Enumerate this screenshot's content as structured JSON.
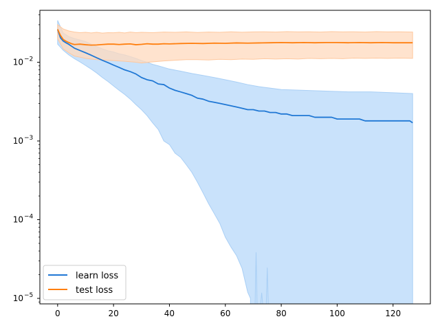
{
  "chart_data": {
    "type": "line",
    "title": "",
    "xlabel": "",
    "ylabel": "",
    "xlim": [
      -6.35,
      133.35
    ],
    "ylim_log10": [
      -5.07,
      -1.34
    ],
    "yscale": "log",
    "grid": false,
    "legend_position": "lower-left",
    "x_ticks": [
      {
        "value": 0,
        "label": "0"
      },
      {
        "value": 20,
        "label": "20"
      },
      {
        "value": 40,
        "label": "40"
      },
      {
        "value": 60,
        "label": "60"
      },
      {
        "value": 80,
        "label": "80"
      },
      {
        "value": 100,
        "label": "100"
      },
      {
        "value": 120,
        "label": "120"
      }
    ],
    "y_ticks": [
      {
        "value": -2,
        "base": "10",
        "exp": "−2"
      },
      {
        "value": -3,
        "base": "10",
        "exp": "−3"
      },
      {
        "value": -4,
        "base": "10",
        "exp": "−4"
      },
      {
        "value": -5,
        "base": "10",
        "exp": "−5"
      }
    ],
    "series": [
      {
        "name": "learn loss",
        "color": "#1f77d4",
        "band_color": "#c9e2fb",
        "band_stroke": "#a9cff5",
        "mean": [
          [
            0,
            0.0262
          ],
          [
            1,
            0.0205
          ],
          [
            2,
            0.0186
          ],
          [
            3,
            0.0177
          ],
          [
            4,
            0.0169
          ],
          [
            5,
            0.016
          ],
          [
            6,
            0.0151
          ],
          [
            8,
            0.0141
          ],
          [
            10,
            0.0132
          ],
          [
            12,
            0.0123
          ],
          [
            14,
            0.0114
          ],
          [
            16,
            0.0106
          ],
          [
            18,
            0.0099
          ],
          [
            20,
            0.0092
          ],
          [
            22,
            0.0086
          ],
          [
            24,
            0.008
          ],
          [
            26,
            0.0076
          ],
          [
            28,
            0.0071
          ],
          [
            30,
            0.0064
          ],
          [
            32,
            0.006
          ],
          [
            34,
            0.0058
          ],
          [
            36,
            0.0053
          ],
          [
            38,
            0.0052
          ],
          [
            40,
            0.0047
          ],
          [
            42,
            0.0044
          ],
          [
            44,
            0.0042
          ],
          [
            46,
            0.004
          ],
          [
            48,
            0.0038
          ],
          [
            50,
            0.0035
          ],
          [
            52,
            0.0034
          ],
          [
            54,
            0.0032
          ],
          [
            56,
            0.0031
          ],
          [
            58,
            0.003
          ],
          [
            60,
            0.0029
          ],
          [
            62,
            0.0028
          ],
          [
            64,
            0.0027
          ],
          [
            66,
            0.0026
          ],
          [
            68,
            0.0025
          ],
          [
            70,
            0.0025
          ],
          [
            72,
            0.0024
          ],
          [
            74,
            0.0024
          ],
          [
            76,
            0.0023
          ],
          [
            78,
            0.0023
          ],
          [
            80,
            0.0022
          ],
          [
            82,
            0.0022
          ],
          [
            84,
            0.0021
          ],
          [
            86,
            0.0021
          ],
          [
            88,
            0.0021
          ],
          [
            90,
            0.0021
          ],
          [
            92,
            0.002
          ],
          [
            94,
            0.002
          ],
          [
            96,
            0.002
          ],
          [
            98,
            0.002
          ],
          [
            100,
            0.0019
          ],
          [
            102,
            0.0019
          ],
          [
            104,
            0.0019
          ],
          [
            106,
            0.0019
          ],
          [
            108,
            0.0019
          ],
          [
            110,
            0.0018
          ],
          [
            112,
            0.0018
          ],
          [
            114,
            0.0018
          ],
          [
            116,
            0.0018
          ],
          [
            118,
            0.0018
          ],
          [
            120,
            0.0018
          ],
          [
            122,
            0.0018
          ],
          [
            124,
            0.0018
          ],
          [
            126,
            0.0018
          ],
          [
            127,
            0.0017
          ]
        ],
        "upper": [
          [
            0,
            0.034
          ],
          [
            2,
            0.0235
          ],
          [
            4,
            0.0212
          ],
          [
            6,
            0.02
          ],
          [
            8,
            0.0192
          ],
          [
            10,
            0.0183
          ],
          [
            12,
            0.017
          ],
          [
            14,
            0.0158
          ],
          [
            16,
            0.0148
          ],
          [
            18,
            0.014
          ],
          [
            20,
            0.0135
          ],
          [
            22,
            0.0128
          ],
          [
            24,
            0.0124
          ],
          [
            26,
            0.0118
          ],
          [
            28,
            0.0112
          ],
          [
            30,
            0.0105
          ],
          [
            32,
            0.01
          ],
          [
            34,
            0.0094
          ],
          [
            36,
            0.009
          ],
          [
            38,
            0.0086
          ],
          [
            40,
            0.0082
          ],
          [
            44,
            0.0077
          ],
          [
            48,
            0.0072
          ],
          [
            52,
            0.0068
          ],
          [
            56,
            0.0064
          ],
          [
            60,
            0.006
          ],
          [
            64,
            0.0056
          ],
          [
            68,
            0.0052
          ],
          [
            72,
            0.0049
          ],
          [
            76,
            0.0047
          ],
          [
            80,
            0.0045
          ],
          [
            88,
            0.0044
          ],
          [
            96,
            0.0043
          ],
          [
            104,
            0.0042
          ],
          [
            112,
            0.0042
          ],
          [
            120,
            0.0041
          ],
          [
            127,
            0.004
          ]
        ],
        "lower": [
          [
            0,
            0.017
          ],
          [
            2,
            0.0142
          ],
          [
            4,
            0.0124
          ],
          [
            6,
            0.0111
          ],
          [
            8,
            0.0101
          ],
          [
            10,
            0.0091
          ],
          [
            12,
            0.0082
          ],
          [
            14,
            0.0073
          ],
          [
            16,
            0.0064
          ],
          [
            18,
            0.0057
          ],
          [
            20,
            0.005
          ],
          [
            22,
            0.0044
          ],
          [
            24,
            0.0039
          ],
          [
            26,
            0.0034
          ],
          [
            28,
            0.0029
          ],
          [
            30,
            0.0025
          ],
          [
            32,
            0.0021
          ],
          [
            34,
            0.0017
          ],
          [
            36,
            0.0014
          ],
          [
            38,
            0.001
          ],
          [
            40,
            0.0009
          ],
          [
            42,
            0.0007
          ],
          [
            44,
            0.00062
          ],
          [
            46,
            0.0005
          ],
          [
            48,
            0.0004
          ],
          [
            50,
            0.0003
          ],
          [
            52,
            0.00022
          ],
          [
            54,
            0.00016
          ],
          [
            56,
            0.00012
          ],
          [
            58,
            9e-05
          ],
          [
            60,
            6e-05
          ],
          [
            62,
            4.5e-05
          ],
          [
            64,
            3.5e-05
          ],
          [
            66,
            2.4e-05
          ],
          [
            68,
            1.2e-05
          ],
          [
            69,
            1e-05
          ]
        ],
        "spikes": [
          [
            71,
            3.85e-05
          ],
          [
            73,
            1.18e-05
          ],
          [
            75,
            2.46e-05
          ]
        ]
      },
      {
        "name": "test loss",
        "color": "#ff7f0e",
        "band_color": "#ffd9bd",
        "band_stroke": "#ffc89e",
        "mean": [
          [
            0,
            0.0262
          ],
          [
            1,
            0.022
          ],
          [
            2,
            0.0195
          ],
          [
            3,
            0.0185
          ],
          [
            4,
            0.0178
          ],
          [
            5,
            0.0172
          ],
          [
            6,
            0.0168
          ],
          [
            8,
            0.017
          ],
          [
            10,
            0.0167
          ],
          [
            12,
            0.0165
          ],
          [
            14,
            0.0166
          ],
          [
            16,
            0.0168
          ],
          [
            18,
            0.017
          ],
          [
            20,
            0.017
          ],
          [
            22,
            0.0168
          ],
          [
            24,
            0.017
          ],
          [
            26,
            0.0171
          ],
          [
            28,
            0.0167
          ],
          [
            30,
            0.0169
          ],
          [
            32,
            0.0172
          ],
          [
            34,
            0.017
          ],
          [
            36,
            0.017
          ],
          [
            38,
            0.0172
          ],
          [
            40,
            0.0171
          ],
          [
            44,
            0.0173
          ],
          [
            48,
            0.0174
          ],
          [
            52,
            0.0173
          ],
          [
            56,
            0.0175
          ],
          [
            60,
            0.0174
          ],
          [
            64,
            0.0176
          ],
          [
            68,
            0.0175
          ],
          [
            72,
            0.0176
          ],
          [
            76,
            0.0177
          ],
          [
            80,
            0.0178
          ],
          [
            84,
            0.0177
          ],
          [
            88,
            0.0178
          ],
          [
            92,
            0.0177
          ],
          [
            96,
            0.0178
          ],
          [
            100,
            0.0178
          ],
          [
            104,
            0.0177
          ],
          [
            108,
            0.0178
          ],
          [
            112,
            0.0177
          ],
          [
            116,
            0.0178
          ],
          [
            120,
            0.0177
          ],
          [
            124,
            0.0177
          ],
          [
            127,
            0.0177
          ]
        ],
        "upper": [
          [
            0,
            0.03
          ],
          [
            2,
            0.0265
          ],
          [
            4,
            0.025
          ],
          [
            6,
            0.0242
          ],
          [
            8,
            0.0238
          ],
          [
            10,
            0.024
          ],
          [
            12,
            0.0236
          ],
          [
            14,
            0.024
          ],
          [
            16,
            0.0235
          ],
          [
            18,
            0.0238
          ],
          [
            20,
            0.0237
          ],
          [
            22,
            0.024
          ],
          [
            24,
            0.0236
          ],
          [
            26,
            0.0242
          ],
          [
            28,
            0.0238
          ],
          [
            30,
            0.024
          ],
          [
            34,
            0.0238
          ],
          [
            38,
            0.0242
          ],
          [
            42,
            0.024
          ],
          [
            46,
            0.0243
          ],
          [
            50,
            0.0239
          ],
          [
            54,
            0.0242
          ],
          [
            58,
            0.024
          ],
          [
            62,
            0.0244
          ],
          [
            66,
            0.0241
          ],
          [
            70,
            0.0243
          ],
          [
            74,
            0.0244
          ],
          [
            78,
            0.0242
          ],
          [
            82,
            0.0245
          ],
          [
            86,
            0.0243
          ],
          [
            90,
            0.0244
          ],
          [
            94,
            0.0242
          ],
          [
            98,
            0.0245
          ],
          [
            102,
            0.0243
          ],
          [
            106,
            0.0244
          ],
          [
            110,
            0.0242
          ],
          [
            114,
            0.0245
          ],
          [
            118,
            0.0243
          ],
          [
            122,
            0.0244
          ],
          [
            127,
            0.0242
          ]
        ],
        "lower": [
          [
            0,
            0.02
          ],
          [
            2,
            0.0148
          ],
          [
            4,
            0.0132
          ],
          [
            6,
            0.012
          ],
          [
            8,
            0.0116
          ],
          [
            10,
            0.0112
          ],
          [
            12,
            0.011
          ],
          [
            14,
            0.0108
          ],
          [
            16,
            0.0107
          ],
          [
            18,
            0.0106
          ],
          [
            20,
            0.0105
          ],
          [
            24,
            0.0103
          ],
          [
            28,
            0.01
          ],
          [
            30,
            0.0098
          ],
          [
            34,
            0.0101
          ],
          [
            38,
            0.0104
          ],
          [
            42,
            0.0106
          ],
          [
            46,
            0.0108
          ],
          [
            50,
            0.0108
          ],
          [
            54,
            0.0107
          ],
          [
            58,
            0.0109
          ],
          [
            62,
            0.0108
          ],
          [
            66,
            0.011
          ],
          [
            70,
            0.0109
          ],
          [
            74,
            0.0111
          ],
          [
            78,
            0.011
          ],
          [
            82,
            0.0111
          ],
          [
            86,
            0.011
          ],
          [
            90,
            0.0112
          ],
          [
            94,
            0.0111
          ],
          [
            98,
            0.0112
          ],
          [
            102,
            0.0111
          ],
          [
            106,
            0.0113
          ],
          [
            110,
            0.0112
          ],
          [
            114,
            0.0113
          ],
          [
            118,
            0.0112
          ],
          [
            122,
            0.0113
          ],
          [
            127,
            0.0112
          ]
        ]
      }
    ]
  }
}
